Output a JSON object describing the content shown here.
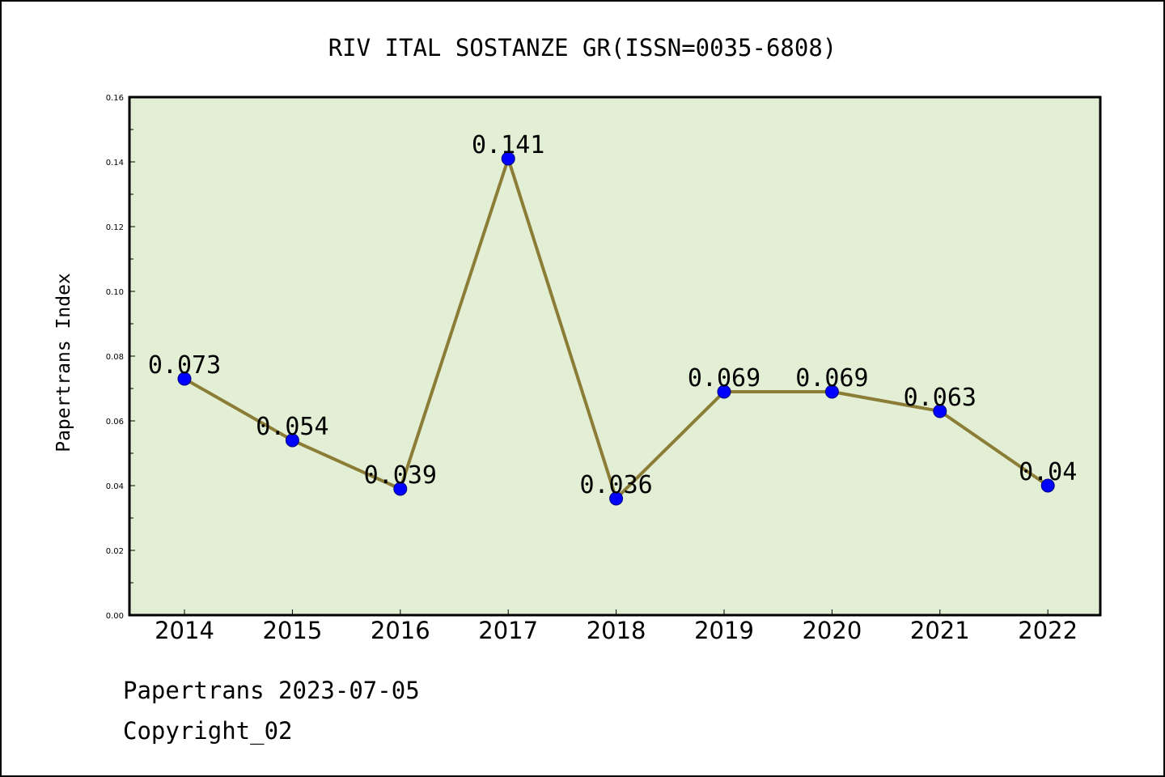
{
  "chart_data": {
    "type": "line",
    "title": "RIV ITAL SOSTANZE GR(ISSN=0035-6808)",
    "xlabel": "",
    "ylabel": "Papertrans Index",
    "categories": [
      "2014",
      "2015",
      "2016",
      "2017",
      "2018",
      "2019",
      "2020",
      "2021",
      "2022"
    ],
    "values": [
      0.073,
      0.054,
      0.039,
      0.141,
      0.036,
      0.069,
      0.069,
      0.063,
      0.04
    ],
    "data_labels": [
      "0.073",
      "0.054",
      "0.039",
      "0.141",
      "0.036",
      "0.069",
      "0.069",
      "0.063",
      "0.04"
    ],
    "ylim": [
      0,
      0.16
    ],
    "yticks": [
      "0.00",
      "0.02",
      "0.04",
      "0.06",
      "0.08",
      "0.10",
      "0.12",
      "0.14",
      "0.16"
    ],
    "grid": false,
    "legend": "none",
    "colors": {
      "plot_background": "#e2efd5",
      "line": "#8b7d35",
      "marker": "#0000ff",
      "marker_edge": "#000080",
      "axes": "#000000"
    }
  },
  "footer": {
    "line1": "Papertrans 2023-07-05",
    "line2": "Copyright_02"
  }
}
